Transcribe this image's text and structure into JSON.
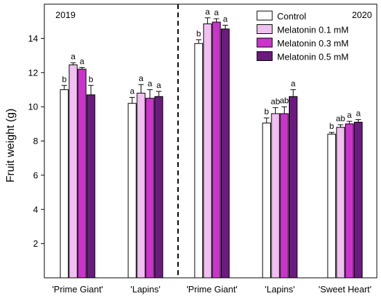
{
  "chart_data": {
    "type": "bar",
    "ylabel": "Fruit weight (g)",
    "ylim": [
      0,
      16
    ],
    "yticks": [
      2,
      4,
      6,
      8,
      10,
      12,
      14
    ],
    "years": [
      {
        "label": "2019",
        "position": "top-left"
      },
      {
        "label": "2020",
        "position": "top-right"
      }
    ],
    "divider": "dashed line between 2019 and 2020 groups",
    "series": [
      {
        "name": "Control",
        "color": "#ffffff"
      },
      {
        "name": "Melatonin 0.1 mM",
        "color": "#f0c0f0"
      },
      {
        "name": "Melatonin 0.3 mM",
        "color": "#cc33cc"
      },
      {
        "name": "Melatonin 0.5 mM",
        "color": "#6b1a80"
      }
    ],
    "groups": [
      {
        "category": "'Prime Giant'",
        "year": "2019",
        "values": [
          11.0,
          12.45,
          12.2,
          10.7
        ],
        "errors": [
          0.25,
          0.12,
          0.1,
          0.55
        ],
        "letters": [
          "b",
          "a",
          "a",
          "b"
        ]
      },
      {
        "category": "'Lapins'",
        "year": "2019",
        "values": [
          10.2,
          10.8,
          10.5,
          10.6
        ],
        "errors": [
          0.35,
          0.5,
          0.5,
          0.3
        ],
        "letters": [
          "a",
          "a",
          "a",
          "a"
        ]
      },
      {
        "category": "'Prime Giant'",
        "year": "2020",
        "values": [
          13.7,
          14.85,
          14.95,
          14.55
        ],
        "errors": [
          0.22,
          0.35,
          0.2,
          0.22
        ],
        "letters": [
          "b",
          "a",
          "a",
          "a"
        ]
      },
      {
        "category": "'Lapins'",
        "year": "2020",
        "values": [
          9.05,
          9.6,
          9.6,
          10.6
        ],
        "errors": [
          0.3,
          0.35,
          0.4,
          0.4
        ],
        "letters": [
          "b",
          "ab",
          "ab",
          "a"
        ]
      },
      {
        "category": "'Sweet Heart'",
        "year": "2020",
        "values": [
          8.4,
          8.8,
          9.0,
          9.1
        ],
        "errors": [
          0.1,
          0.15,
          0.15,
          0.15
        ],
        "letters": [
          "b",
          "ab",
          "a",
          "a"
        ]
      }
    ],
    "legend_placement": "top-right",
    "grid": false
  }
}
